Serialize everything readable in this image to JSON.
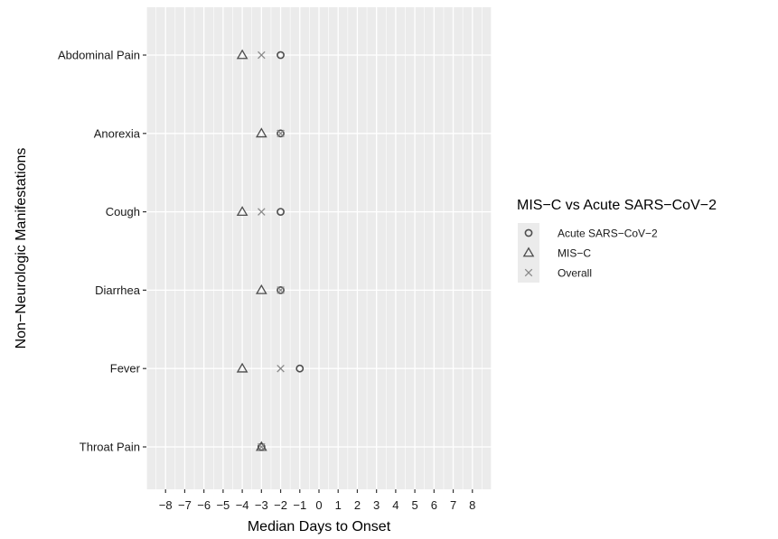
{
  "chart_data": {
    "type": "scatter",
    "xlabel": "Median Days to Onset",
    "ylabel": "Non−Neurologic Manifestations",
    "xlim": [
      -9,
      9
    ],
    "xticks": [
      -8,
      -7,
      -6,
      -5,
      -4,
      -3,
      -2,
      -1,
      0,
      1,
      2,
      3,
      4,
      5,
      6,
      7,
      8
    ],
    "xtick_labels": [
      "−8",
      "−7",
      "−6",
      "−5",
      "−4",
      "−3",
      "−2",
      "−1",
      "0",
      "1",
      "2",
      "3",
      "4",
      "5",
      "6",
      "7",
      "8"
    ],
    "categories": [
      "Abdominal Pain",
      "Anorexia",
      "Cough",
      "Diarrhea",
      "Fever",
      "Throat Pain"
    ],
    "series": [
      {
        "name": "Acute SARS−CoV−2",
        "shape": "circle",
        "values": [
          -2,
          -2,
          -2,
          -2,
          -1,
          -3
        ]
      },
      {
        "name": "MIS−C",
        "shape": "triangle",
        "values": [
          -4,
          -3,
          -4,
          -3,
          -4,
          -3
        ]
      },
      {
        "name": "Overall",
        "shape": "cross",
        "values": [
          -3,
          -2,
          -3,
          -2,
          -2,
          -3
        ]
      }
    ],
    "legend": {
      "title": "MIS−C vs Acute SARS−CoV−2",
      "position": "right"
    },
    "grid": true,
    "colors": {
      "panel": "#ebebeb",
      "grid": "#ffffff",
      "marker": "#4d4d4d"
    }
  }
}
